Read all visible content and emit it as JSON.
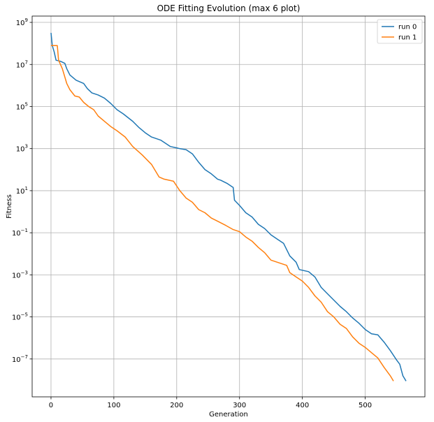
{
  "chart_data": {
    "type": "line",
    "title": "ODE Fitting Evolution (max 6 plot)",
    "xlabel": "Generation",
    "ylabel": "Fitness",
    "xlim": [
      -30,
      595
    ],
    "ylim_log10": [
      -8.8,
      9.3
    ],
    "yscale": "log",
    "grid": true,
    "legend_position": "top-right",
    "x_ticks": [
      0,
      100,
      200,
      300,
      400,
      500
    ],
    "x_tick_labels": [
      "0",
      "100",
      "200",
      "300",
      "400",
      "500"
    ],
    "y_tick_exponents": [
      9,
      7,
      5,
      3,
      1,
      -1,
      -3,
      -5,
      -7
    ],
    "y_tick_base": "10",
    "y_tick_exponent_labels": [
      "9",
      "7",
      "5",
      "3",
      "1",
      "−1",
      "−3",
      "−5",
      "−7"
    ],
    "series": [
      {
        "name": "run 0",
        "color": "#1f77b4",
        "points_log10": [
          [
            0,
            8.5
          ],
          [
            2,
            7.9
          ],
          [
            5,
            7.6
          ],
          [
            8,
            7.2
          ],
          [
            15,
            7.15
          ],
          [
            22,
            7.05
          ],
          [
            25,
            6.8
          ],
          [
            30,
            6.5
          ],
          [
            40,
            6.25
          ],
          [
            52,
            6.1
          ],
          [
            58,
            5.85
          ],
          [
            65,
            5.65
          ],
          [
            75,
            5.55
          ],
          [
            85,
            5.4
          ],
          [
            95,
            5.15
          ],
          [
            105,
            4.85
          ],
          [
            115,
            4.65
          ],
          [
            130,
            4.3
          ],
          [
            140,
            4.0
          ],
          [
            150,
            3.75
          ],
          [
            160,
            3.55
          ],
          [
            175,
            3.4
          ],
          [
            190,
            3.1
          ],
          [
            205,
            3.0
          ],
          [
            215,
            2.95
          ],
          [
            225,
            2.75
          ],
          [
            235,
            2.35
          ],
          [
            245,
            2.0
          ],
          [
            255,
            1.8
          ],
          [
            265,
            1.55
          ],
          [
            270,
            1.5
          ],
          [
            280,
            1.35
          ],
          [
            290,
            1.15
          ],
          [
            292,
            0.55
          ],
          [
            300,
            0.3
          ],
          [
            310,
            -0.05
          ],
          [
            320,
            -0.25
          ],
          [
            330,
            -0.6
          ],
          [
            340,
            -0.8
          ],
          [
            350,
            -1.1
          ],
          [
            360,
            -1.3
          ],
          [
            370,
            -1.5
          ],
          [
            380,
            -2.1
          ],
          [
            390,
            -2.4
          ],
          [
            395,
            -2.75
          ],
          [
            410,
            -2.85
          ],
          [
            420,
            -3.1
          ],
          [
            430,
            -3.6
          ],
          [
            440,
            -3.9
          ],
          [
            450,
            -4.2
          ],
          [
            460,
            -4.5
          ],
          [
            470,
            -4.75
          ],
          [
            480,
            -5.05
          ],
          [
            490,
            -5.3
          ],
          [
            500,
            -5.6
          ],
          [
            510,
            -5.8
          ],
          [
            520,
            -5.85
          ],
          [
            530,
            -6.2
          ],
          [
            540,
            -6.6
          ],
          [
            550,
            -7.05
          ],
          [
            555,
            -7.25
          ],
          [
            560,
            -7.8
          ],
          [
            565,
            -8.05
          ]
        ]
      },
      {
        "name": "run 1",
        "color": "#ff7f0e",
        "points_log10": [
          [
            0,
            7.9
          ],
          [
            5,
            7.9
          ],
          [
            10,
            7.9
          ],
          [
            12,
            7.2
          ],
          [
            18,
            6.8
          ],
          [
            25,
            6.1
          ],
          [
            30,
            5.8
          ],
          [
            38,
            5.5
          ],
          [
            45,
            5.45
          ],
          [
            52,
            5.2
          ],
          [
            60,
            5.0
          ],
          [
            68,
            4.85
          ],
          [
            75,
            4.55
          ],
          [
            85,
            4.3
          ],
          [
            95,
            4.05
          ],
          [
            105,
            3.85
          ],
          [
            118,
            3.55
          ],
          [
            130,
            3.1
          ],
          [
            145,
            2.7
          ],
          [
            160,
            2.25
          ],
          [
            172,
            1.65
          ],
          [
            180,
            1.55
          ],
          [
            195,
            1.45
          ],
          [
            205,
            1.0
          ],
          [
            215,
            0.65
          ],
          [
            225,
            0.45
          ],
          [
            235,
            0.1
          ],
          [
            245,
            -0.05
          ],
          [
            255,
            -0.3
          ],
          [
            265,
            -0.45
          ],
          [
            278,
            -0.65
          ],
          [
            290,
            -0.85
          ],
          [
            300,
            -0.95
          ],
          [
            310,
            -1.2
          ],
          [
            320,
            -1.4
          ],
          [
            330,
            -1.7
          ],
          [
            340,
            -1.95
          ],
          [
            350,
            -2.3
          ],
          [
            360,
            -2.4
          ],
          [
            375,
            -2.55
          ],
          [
            380,
            -2.9
          ],
          [
            390,
            -3.1
          ],
          [
            400,
            -3.3
          ],
          [
            410,
            -3.6
          ],
          [
            420,
            -4.0
          ],
          [
            430,
            -4.3
          ],
          [
            440,
            -4.75
          ],
          [
            450,
            -5.0
          ],
          [
            460,
            -5.35
          ],
          [
            470,
            -5.55
          ],
          [
            480,
            -5.95
          ],
          [
            490,
            -6.25
          ],
          [
            500,
            -6.45
          ],
          [
            510,
            -6.7
          ],
          [
            520,
            -6.95
          ],
          [
            530,
            -7.4
          ],
          [
            540,
            -7.8
          ],
          [
            545,
            -8.05
          ]
        ]
      }
    ]
  }
}
